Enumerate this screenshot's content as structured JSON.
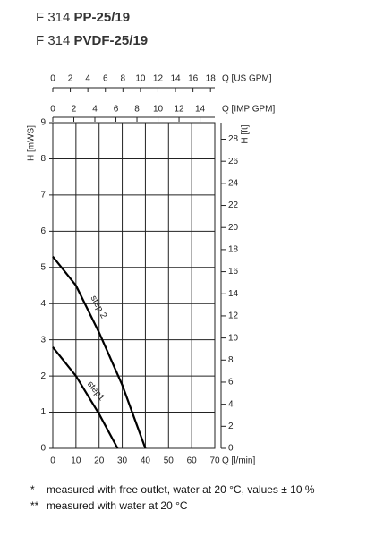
{
  "chart_data": {
    "type": "line",
    "titles": [
      {
        "prefix": "F 314",
        "model": "PP-25/19"
      },
      {
        "prefix": "F 314",
        "model": "PVDF-25/19"
      }
    ],
    "x_label": "Q [l/min]",
    "y_label": "H [mWS]",
    "y2_label": "H [ft]",
    "us_gpm_label": "Q [US GPM]",
    "imp_gpm_label": "Q [IMP GPM]",
    "xlim": [
      0,
      70
    ],
    "xticks": [
      0,
      10,
      20,
      30,
      40,
      50,
      60,
      70
    ],
    "ylim": [
      0,
      9
    ],
    "yticks": [
      0,
      1,
      2,
      3,
      4,
      5,
      6,
      7,
      8,
      9
    ],
    "y2lim": [
      0,
      29.5
    ],
    "y2ticks": [
      0,
      2,
      4,
      6,
      8,
      10,
      12,
      14,
      16,
      18,
      20,
      22,
      24,
      26,
      28
    ],
    "us_gpm_lim": [
      0,
      18.49
    ],
    "us_gpm_ticks": [
      0,
      2,
      4,
      6,
      8,
      10,
      12,
      14,
      16,
      18
    ],
    "imp_gpm_lim": [
      0,
      15.4
    ],
    "imp_gpm_ticks": [
      0,
      2,
      4,
      6,
      8,
      10,
      12,
      14
    ],
    "grid": true,
    "series": [
      {
        "name": "step 2",
        "color": "#000000",
        "x": [
          0,
          10,
          20,
          30,
          40
        ],
        "values": [
          5.3,
          4.5,
          3.2,
          1.75,
          0
        ]
      },
      {
        "name": "step1",
        "color": "#000000",
        "x": [
          0,
          10,
          20,
          28
        ],
        "values": [
          2.8,
          2.0,
          0.95,
          0
        ]
      }
    ],
    "footnotes": [
      {
        "mark": "*",
        "text": "measured with free outlet, water at 20 °C, values ± 10 %"
      },
      {
        "mark": "**",
        "text": "measured with water at 20 °C"
      }
    ]
  }
}
